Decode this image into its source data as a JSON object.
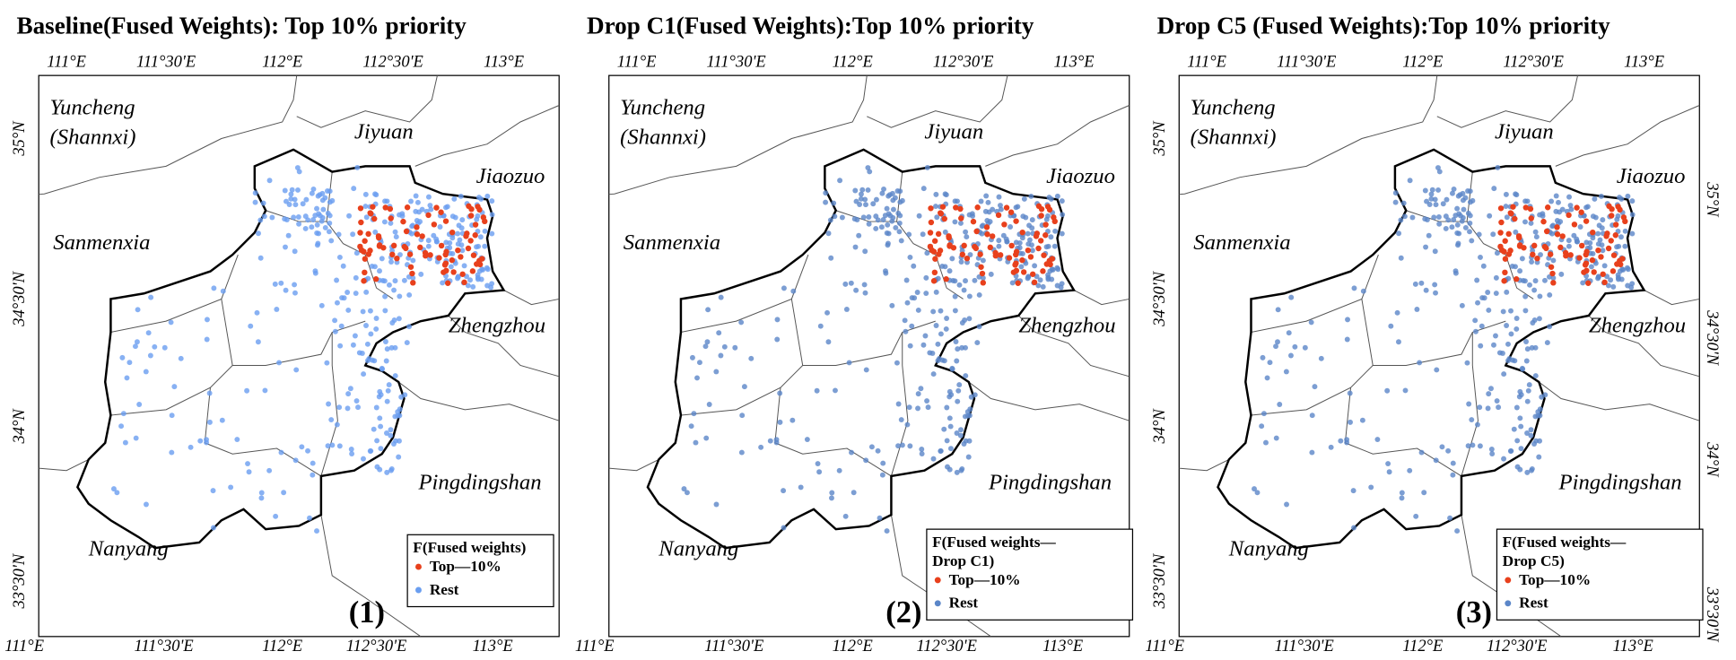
{
  "lon_ticks": [
    "111°E",
    "111°30'E",
    "112°E",
    "112°30'E",
    "113°E"
  ],
  "lat_ticks": [
    "35°N",
    "34°30'N",
    "34°N",
    "33°30'N"
  ],
  "places": [
    "Yuncheng",
    "(Shannxi)",
    "Jiyuan",
    "Jiaozuo",
    "Sanmenxia",
    "Zhengzhou",
    "Pingdingshan",
    "Nanyang"
  ],
  "top_color": "#e8401c",
  "panels": [
    {
      "title": "Baseline(Fused Weights): Top 10% priority",
      "panel_label": "(1)",
      "rest_color": "#6a9ef0",
      "legend": {
        "title": [
          "F(Fused weights)"
        ],
        "items": [
          "Top—10%",
          "Rest"
        ]
      }
    },
    {
      "title": "Drop C1(Fused Weights):Top 10% priority",
      "panel_label": "(2)",
      "rest_color": "#5b86c8",
      "legend": {
        "title": [
          "F(Fused weights—",
          "Drop C1)"
        ],
        "items": [
          "Top—10%",
          "Rest"
        ]
      }
    },
    {
      "title": "Drop C5 (Fused Weights):Top 10% priority",
      "panel_label": "(3)",
      "rest_color": "#5b86c8",
      "legend": {
        "title": [
          "F(Fused weights—",
          "Drop C5)"
        ],
        "items": [
          "Top—10%",
          "Rest"
        ]
      }
    }
  ]
}
